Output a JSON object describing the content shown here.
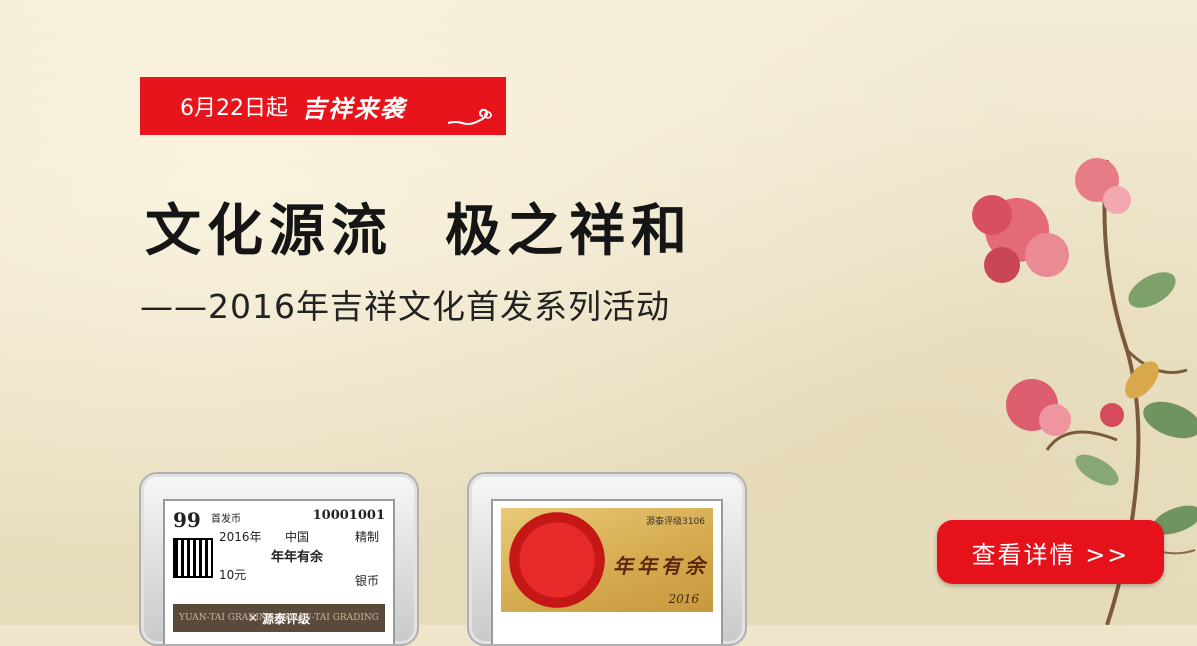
{
  "banner": {
    "date": "6月22日起",
    "tagline": "吉祥来袭"
  },
  "headline": {
    "part1": "文化源流",
    "part2": "极之祥和"
  },
  "subtitle": "——2016年吉祥文化首发系列活动",
  "cta": {
    "label": "查看详情 >>"
  },
  "slab1": {
    "grade": "99",
    "issue": "首发币",
    "serial": "10001001",
    "year": "2016年",
    "country": "中国",
    "finish": "精制",
    "title": "年年有余",
    "face_value": "10元",
    "metal": "银币",
    "brand": "源泰评级",
    "brand_side_left": "YUAN-TAI GRADING",
    "brand_side_right": "YUAN-TAI GRADING"
  },
  "slab2": {
    "code": "源泰评级3106",
    "calligraphy": "年年有余",
    "year": "2016"
  },
  "colors": {
    "accent": "#e5111b",
    "background": "#efe6cc"
  },
  "icons": {
    "cloud": "auspicious-cloud-icon",
    "flowers": "flower-branch-decoration"
  }
}
